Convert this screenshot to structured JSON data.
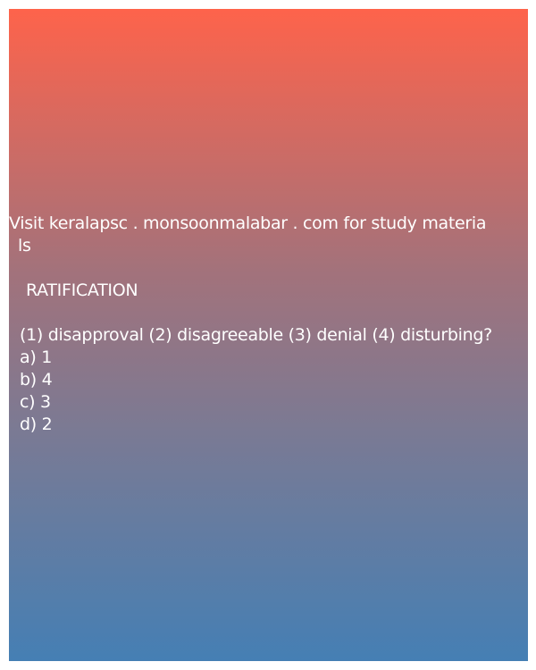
{
  "promo": {
    "line1": "Visit keralapsc . monsoonmalabar . com for study materia",
    "line2": "ls"
  },
  "question": {
    "word": "RATIFICATION",
    "prompt": "(1) disapproval (2) disagreeable (3) denial (4) disturbing?",
    "options": [
      "a) 1",
      "b) 4",
      "c) 3",
      "d) 2"
    ]
  },
  "colors": {
    "gradient_top": "#fe634b",
    "gradient_bottom": "#457fb4",
    "text": "#ffffff"
  }
}
